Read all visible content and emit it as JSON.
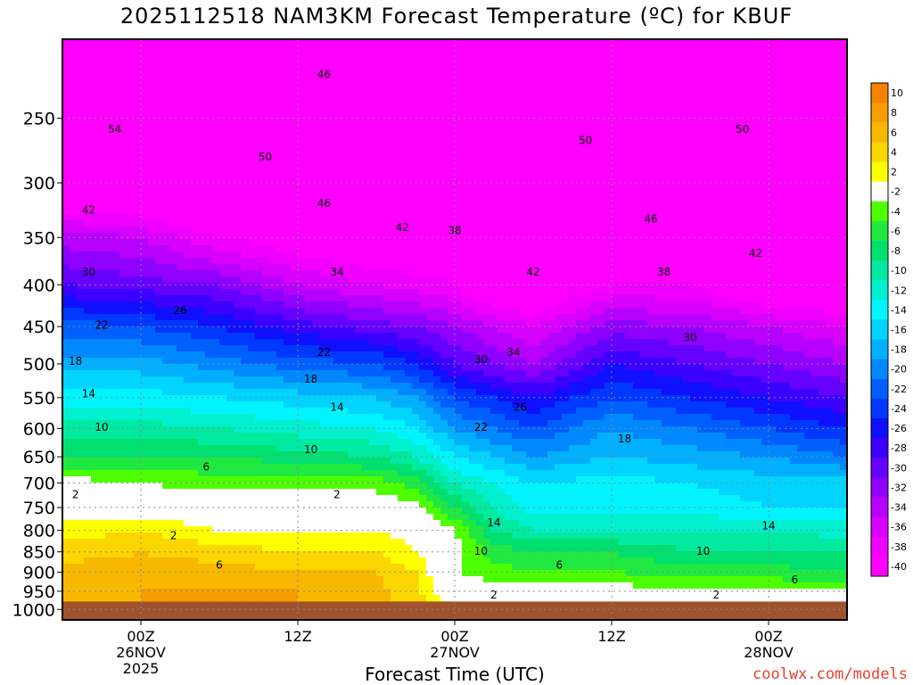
{
  "chart_data": {
    "type": "heatmap",
    "title": "2025112518 NAM3KM Forecast Temperature (ºC) for KBUF",
    "xlabel": "Forecast Time (UTC)",
    "ylabel": "",
    "y_scale": "log",
    "yaxis_reversed": true,
    "ylim": [
      1030,
      200
    ],
    "y_ticks": [
      250,
      300,
      350,
      400,
      450,
      500,
      550,
      600,
      650,
      700,
      750,
      800,
      850,
      900,
      950,
      1000
    ],
    "xlim": [
      -6,
      54
    ],
    "x_ticks": [
      {
        "x": 0,
        "label": "00Z",
        "date": "26NOV",
        "year": "2025"
      },
      {
        "x": 12,
        "label": "12Z",
        "date": "",
        "year": ""
      },
      {
        "x": 24,
        "label": "00Z",
        "date": "27NOV",
        "year": ""
      },
      {
        "x": 36,
        "label": "12Z",
        "date": "",
        "year": ""
      },
      {
        "x": 48,
        "label": "00Z",
        "date": "28NOV",
        "year": ""
      }
    ],
    "x": [
      -6,
      0,
      6,
      12,
      18,
      21,
      24,
      27,
      30,
      36,
      42,
      48,
      54
    ],
    "y": [
      230,
      250,
      275,
      300,
      350,
      400,
      450,
      500,
      550,
      600,
      650,
      700,
      750,
      800,
      850,
      900,
      950,
      975
    ],
    "values": [
      [
        -50,
        -50,
        -52,
        -52,
        -50,
        -48,
        -46,
        -46,
        -46,
        -48,
        -50,
        -50,
        -50
      ],
      [
        -52,
        -54,
        -54,
        -54,
        -52,
        -50,
        -48,
        -48,
        -48,
        -50,
        -50,
        -50,
        -50
      ],
      [
        -47,
        -48,
        -50,
        -50,
        -49,
        -47,
        -45,
        -45,
        -46,
        -48,
        -48,
        -48,
        -47
      ],
      [
        -43,
        -44,
        -46,
        -46,
        -46,
        -44,
        -42,
        -42,
        -44,
        -46,
        -46,
        -46,
        -45
      ],
      [
        -33,
        -34,
        -38,
        -40,
        -42,
        -41,
        -39,
        -42,
        -44,
        -44,
        -44,
        -44,
        -44
      ],
      [
        -28,
        -29,
        -30,
        -34,
        -36,
        -37,
        -38,
        -42,
        -42,
        -38,
        -38,
        -42,
        -42
      ],
      [
        -21,
        -22,
        -24,
        -27,
        -29,
        -30,
        -32,
        -34,
        -36,
        -31,
        -32,
        -34,
        -36
      ],
      [
        -17,
        -17,
        -19,
        -21,
        -22,
        -24,
        -28,
        -30,
        -32,
        -26,
        -28,
        -30,
        -32
      ],
      [
        -13,
        -13,
        -14,
        -15,
        -16,
        -18,
        -22,
        -24,
        -26,
        -22,
        -24,
        -26,
        -28
      ],
      [
        -9,
        -9,
        -10,
        -11,
        -12,
        -14,
        -18,
        -20,
        -22,
        -18,
        -20,
        -22,
        -24
      ],
      [
        -6,
        -6,
        -6,
        -7,
        -8,
        -10,
        -14,
        -16,
        -18,
        -16,
        -17,
        -18,
        -20
      ],
      [
        -1,
        -2,
        -3,
        -3,
        -3,
        -5,
        -10,
        -12,
        -14,
        -13,
        -14,
        -15,
        -15
      ],
      [
        1,
        0,
        0,
        0,
        0,
        -1,
        -6,
        -10,
        -13,
        -13,
        -13,
        -14,
        -14
      ],
      [
        3,
        4,
        2,
        2,
        2,
        1,
        -2,
        -8,
        -10,
        -10,
        -10,
        -10,
        -11
      ],
      [
        5,
        6,
        5,
        4,
        4,
        2,
        -1,
        -5,
        -6,
        -6,
        -8,
        -8,
        -8
      ],
      [
        7,
        7,
        7,
        6,
        6,
        4,
        -2,
        -3,
        -4,
        -4,
        -5,
        -5,
        -6
      ],
      [
        7,
        8,
        8,
        8,
        7,
        4,
        0,
        -1,
        -1,
        -1,
        -1,
        -2,
        -2
      ],
      [
        6,
        8,
        8,
        8,
        7,
        5,
        1,
        0,
        0,
        0,
        0,
        0,
        -1
      ]
    ],
    "contour_labels": [
      {
        "x": 14,
        "y": 221,
        "text": "46"
      },
      {
        "x": -2,
        "y": 258,
        "text": "54"
      },
      {
        "x": 34,
        "y": 266,
        "text": "50"
      },
      {
        "x": 9.5,
        "y": 279,
        "text": "50"
      },
      {
        "x": 46,
        "y": 258,
        "text": "50"
      },
      {
        "x": 39,
        "y": 332,
        "text": "46"
      },
      {
        "x": -4,
        "y": 324,
        "text": "42"
      },
      {
        "x": 14,
        "y": 318,
        "text": "46"
      },
      {
        "x": 20,
        "y": 340,
        "text": "42"
      },
      {
        "x": 24,
        "y": 343,
        "text": "38"
      },
      {
        "x": 30,
        "y": 386,
        "text": "42"
      },
      {
        "x": 47,
        "y": 366,
        "text": "42"
      },
      {
        "x": -4,
        "y": 386,
        "text": "30"
      },
      {
        "x": 15,
        "y": 386,
        "text": "34"
      },
      {
        "x": 40,
        "y": 386,
        "text": "38"
      },
      {
        "x": 3,
        "y": 430,
        "text": "26"
      },
      {
        "x": -3,
        "y": 448,
        "text": "22"
      },
      {
        "x": 14,
        "y": 484,
        "text": "22"
      },
      {
        "x": 42,
        "y": 464,
        "text": "30"
      },
      {
        "x": -5,
        "y": 496,
        "text": "18"
      },
      {
        "x": 26,
        "y": 494,
        "text": "30"
      },
      {
        "x": 28.5,
        "y": 484,
        "text": "34"
      },
      {
        "x": 13,
        "y": 522,
        "text": "18"
      },
      {
        "x": -4,
        "y": 544,
        "text": "14"
      },
      {
        "x": 15,
        "y": 565,
        "text": "14"
      },
      {
        "x": 29,
        "y": 565,
        "text": "26"
      },
      {
        "x": -3,
        "y": 598,
        "text": "10"
      },
      {
        "x": 26,
        "y": 598,
        "text": "22"
      },
      {
        "x": 37,
        "y": 618,
        "text": "18"
      },
      {
        "x": 13,
        "y": 637,
        "text": "10"
      },
      {
        "x": 5,
        "y": 669,
        "text": "6"
      },
      {
        "x": 27,
        "y": 783,
        "text": "14"
      },
      {
        "x": 48,
        "y": 790,
        "text": "14"
      },
      {
        "x": -5,
        "y": 723,
        "text": "2"
      },
      {
        "x": 15,
        "y": 723,
        "text": "2"
      },
      {
        "x": 2.5,
        "y": 812,
        "text": "2"
      },
      {
        "x": 26,
        "y": 848,
        "text": "10"
      },
      {
        "x": 43,
        "y": 848,
        "text": "10"
      },
      {
        "x": 6,
        "y": 882,
        "text": "6"
      },
      {
        "x": 32,
        "y": 882,
        "text": "6"
      },
      {
        "x": 50,
        "y": 920,
        "text": "6"
      },
      {
        "x": 27,
        "y": 960,
        "text": "2"
      },
      {
        "x": 44,
        "y": 960,
        "text": "2"
      }
    ],
    "colorbar": {
      "labels": [
        "10",
        "8",
        "6",
        "4",
        "2",
        "-2",
        "-4",
        "-6",
        "-8",
        "-10",
        "-12",
        "-14",
        "-16",
        "-18",
        "-20",
        "-22",
        "-24",
        "-26",
        "-28",
        "-30",
        "-32",
        "-34",
        "-36",
        "-38",
        "-40"
      ],
      "colors": [
        "#f58200",
        "#f79e00",
        "#f9b800",
        "#fbd600",
        "#ffff00",
        "#ffffff",
        "#4dff00",
        "#1fe840",
        "#00e070",
        "#00eaa0",
        "#00f0d0",
        "#00f4ff",
        "#00d4ff",
        "#00b0ff",
        "#0088ff",
        "#0060ff",
        "#0038ff",
        "#1010ff",
        "#3c00ff",
        "#6600ff",
        "#9000ff",
        "#b800ff",
        "#d800ff",
        "#f000ff",
        "#ff00ff"
      ]
    },
    "ground_color": "#a0522d",
    "credit": "coolwx.com/models"
  }
}
